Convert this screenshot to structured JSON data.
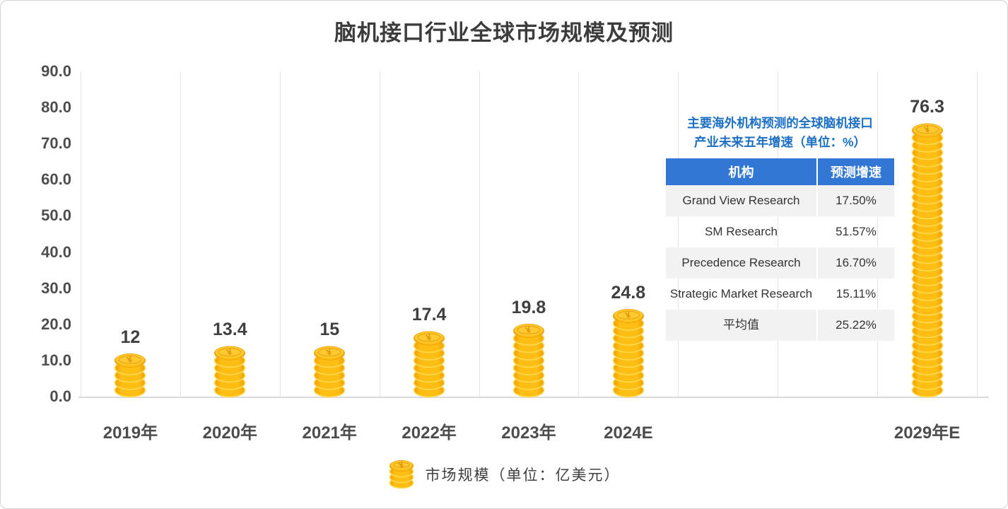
{
  "chart_data": {
    "type": "bar",
    "bar_style": "coin-stack-pictogram",
    "title": "脑机接口行业全球市场规模及预测",
    "categories": [
      "2019年",
      "2020年",
      "2021年",
      "2022年",
      "2023年",
      "2024E",
      "2029年E"
    ],
    "values": [
      12,
      13.4,
      15,
      17.4,
      19.8,
      24.8,
      76.3
    ],
    "value_labels": [
      "12",
      "13.4",
      "15",
      "17.4",
      "19.8",
      "24.8",
      "76.3"
    ],
    "slots": [
      0,
      1,
      2,
      3,
      4,
      5,
      8
    ],
    "total_slots": 9,
    "xlabel": "",
    "ylabel": "",
    "ylim": [
      0,
      90
    ],
    "ytick_interval": 10,
    "yticks": [
      "0.0",
      "10.0",
      "20.0",
      "30.0",
      "40.0",
      "50.0",
      "60.0",
      "70.0",
      "80.0",
      "90.0"
    ],
    "grid": "vertical-only",
    "legend": "市场规模（单位：亿美元）",
    "legend_position": "bottom-center"
  },
  "inset_table": {
    "title_line1": "主要海外机构预测的全球脑机接口",
    "title_line2": "产业未来五年增速（单位：%）",
    "headers": [
      "机构",
      "预测增速"
    ],
    "rows": [
      [
        "Grand View Research",
        "17.50%"
      ],
      [
        "SM Research",
        "51.57%"
      ],
      [
        "Precedence Research",
        "16.70%"
      ],
      [
        "Strategic Market Research",
        "15.11%"
      ],
      [
        "平均值",
        "25.22%"
      ]
    ]
  },
  "icons": {
    "legend_icon": "coin-stack-icon",
    "coin_symbol": "¥"
  },
  "colors": {
    "coin_body": "#FFBE14",
    "coin_body_shadow": "#EDA007",
    "coin_rim_highlight": "#FFDC54",
    "coin_face": "#FFC930",
    "coin_symbol": "#DE970E",
    "table_header_bg": "#3277D3",
    "table_header_text": "#FFFFFF",
    "table_row_alt_bg": "#F2F2F2",
    "table_text": "#333333",
    "inset_title_text": "#1C6FC2",
    "axis_text": "#4D4D4D",
    "label_text": "#3F3F3F",
    "title_text": "#3C3C3C",
    "gridline": "#E3E3E3",
    "axis_line": "#D9D9D9",
    "card_border": "#D4D4D4",
    "background": "#FFFFFF"
  }
}
